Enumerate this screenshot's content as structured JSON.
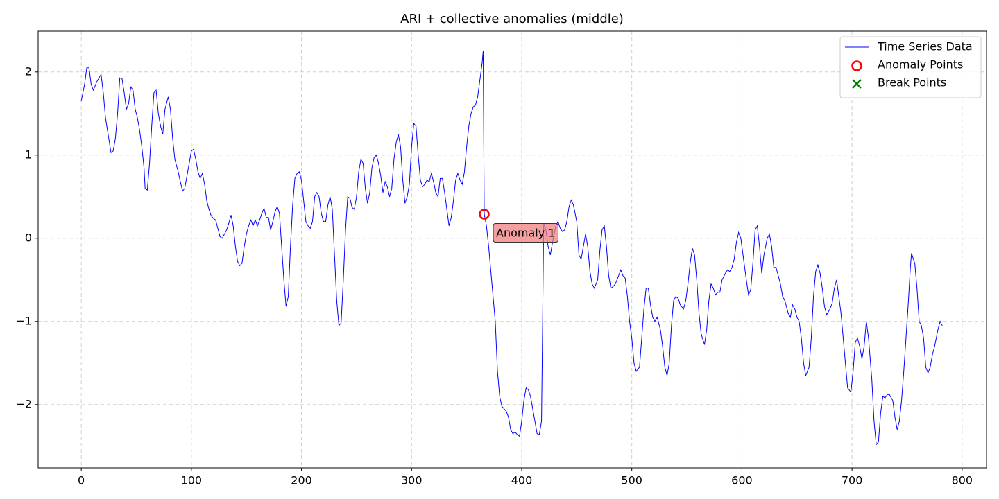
{
  "chart_data": {
    "type": "line",
    "title": "ARI + collective anomalies (middle)",
    "xlim": [
      -39.15,
      822.15
    ],
    "ylim": [
      -2.76,
      2.49
    ],
    "xticks": [
      0,
      100,
      200,
      300,
      400,
      500,
      600,
      700,
      800
    ],
    "yticks": [
      {
        "value": -2,
        "label": "−2"
      },
      {
        "value": -1,
        "label": "−1"
      },
      0,
      1,
      2
    ],
    "grid": true,
    "legend": "upper right",
    "series": [
      {
        "name": "Time Series Data",
        "color": "#0000ff",
        "marker": "line",
        "x": [
          0,
          3,
          5,
          7,
          9,
          11,
          14,
          18,
          20,
          22,
          25,
          27,
          29,
          31,
          33,
          35,
          37,
          39,
          41,
          43,
          45,
          47,
          49,
          51,
          53,
          55,
          57,
          58,
          60,
          62,
          64,
          66,
          68,
          70,
          72,
          74,
          76,
          79,
          81,
          83,
          85,
          88,
          90,
          92,
          94,
          96,
          98,
          100,
          102,
          104,
          106,
          108,
          110,
          112,
          114,
          116,
          118,
          120,
          122,
          124,
          126,
          128,
          130,
          132,
          134,
          136,
          138,
          140,
          142,
          144,
          146,
          148,
          150,
          152,
          154,
          156,
          158,
          160,
          162,
          164,
          166,
          168,
          170,
          172,
          174,
          176,
          178,
          180,
          182,
          184,
          186,
          188,
          190,
          192,
          194,
          196,
          198,
          200,
          202,
          204,
          206,
          208,
          210,
          212,
          214,
          216,
          218,
          220,
          222,
          224,
          226,
          228,
          230,
          232,
          234,
          236,
          238,
          240,
          242,
          244,
          246,
          248,
          250,
          252,
          254,
          256,
          258,
          260,
          262,
          264,
          266,
          268,
          270,
          272,
          274,
          276,
          278,
          280,
          282,
          284,
          286,
          288,
          290,
          292,
          294,
          296,
          298,
          300,
          302,
          304,
          306,
          308,
          310,
          312,
          314,
          316,
          318,
          320,
          322,
          324,
          326,
          328,
          330,
          332,
          334,
          336,
          338,
          340,
          342,
          344,
          346,
          348,
          350,
          352,
          354,
          356,
          358,
          360,
          362,
          364,
          365,
          366,
          368,
          370,
          372,
          374,
          376,
          378,
          380,
          382,
          384,
          386,
          388,
          390,
          392,
          394,
          396,
          398,
          400,
          402,
          404,
          406,
          408,
          410,
          412,
          414,
          416,
          418,
          420,
          422,
          424,
          426,
          428,
          431,
          433,
          435,
          437,
          439,
          441,
          443,
          445,
          447,
          450,
          452,
          454,
          456,
          458,
          460,
          462,
          464,
          466,
          469,
          471,
          473,
          475,
          477,
          479,
          481,
          483,
          485,
          488,
          490,
          492,
          494,
          496,
          498,
          500,
          502,
          504,
          507,
          509,
          511,
          513,
          515,
          517,
          519,
          521,
          523,
          526,
          528,
          530,
          532,
          534,
          536,
          538,
          540,
          542,
          544,
          547,
          549,
          551,
          553,
          555,
          557,
          559,
          561,
          563,
          566,
          568,
          570,
          572,
          574,
          576,
          578,
          580,
          582,
          585,
          587,
          589,
          591,
          593,
          595,
          597,
          599,
          601,
          604,
          606,
          608,
          610,
          612,
          614,
          616,
          618,
          620,
          623,
          625,
          627,
          629,
          631,
          633,
          635,
          637,
          639,
          642,
          644,
          646,
          648,
          650,
          652,
          654,
          656,
          658,
          661,
          663,
          665,
          667,
          669,
          671,
          673,
          675,
          677,
          680,
          682,
          684,
          686,
          688,
          690,
          692,
          694,
          696,
          699,
          701,
          703,
          705,
          707,
          709,
          711,
          713,
          715,
          718,
          720,
          722,
          724,
          726,
          728,
          730,
          732,
          734,
          737,
          739,
          741,
          743,
          745,
          747,
          749,
          751,
          753,
          754,
          757,
          759,
          761,
          763,
          765,
          767,
          769,
          771,
          773,
          775,
          778,
          780,
          782
        ],
        "values": [
          1.65,
          1.85,
          2.05,
          2.05,
          1.85,
          1.78,
          1.88,
          1.97,
          1.75,
          1.45,
          1.2,
          1.03,
          1.05,
          1.2,
          1.5,
          1.93,
          1.92,
          1.75,
          1.55,
          1.62,
          1.82,
          1.78,
          1.55,
          1.45,
          1.3,
          1.1,
          0.85,
          0.6,
          0.58,
          0.9,
          1.35,
          1.75,
          1.78,
          1.5,
          1.35,
          1.25,
          1.55,
          1.7,
          1.55,
          1.2,
          0.95,
          0.8,
          0.68,
          0.57,
          0.6,
          0.75,
          0.9,
          1.05,
          1.07,
          0.95,
          0.8,
          0.72,
          0.78,
          0.65,
          0.45,
          0.35,
          0.27,
          0.24,
          0.22,
          0.12,
          0.02,
          0.0,
          0.05,
          0.1,
          0.18,
          0.28,
          0.15,
          -0.1,
          -0.28,
          -0.33,
          -0.3,
          -0.1,
          0.05,
          0.15,
          0.22,
          0.15,
          0.22,
          0.15,
          0.22,
          0.3,
          0.36,
          0.25,
          0.25,
          0.1,
          0.2,
          0.32,
          0.38,
          0.3,
          -0.1,
          -0.5,
          -0.82,
          -0.7,
          -0.1,
          0.4,
          0.72,
          0.78,
          0.8,
          0.7,
          0.45,
          0.2,
          0.15,
          0.12,
          0.2,
          0.5,
          0.55,
          0.5,
          0.3,
          0.2,
          0.2,
          0.4,
          0.5,
          0.35,
          -0.2,
          -0.75,
          -1.05,
          -1.02,
          -0.5,
          0.1,
          0.5,
          0.48,
          0.37,
          0.35,
          0.5,
          0.8,
          0.95,
          0.9,
          0.6,
          0.42,
          0.55,
          0.85,
          0.97,
          1.0,
          0.9,
          0.75,
          0.55,
          0.68,
          0.62,
          0.5,
          0.6,
          0.95,
          1.15,
          1.25,
          1.1,
          0.7,
          0.42,
          0.5,
          0.65,
          1.1,
          1.38,
          1.35,
          1.0,
          0.7,
          0.62,
          0.65,
          0.7,
          0.68,
          0.78,
          0.68,
          0.55,
          0.5,
          0.72,
          0.72,
          0.55,
          0.35,
          0.15,
          0.25,
          0.45,
          0.7,
          0.78,
          0.7,
          0.65,
          0.8,
          1.1,
          1.35,
          1.5,
          1.58,
          1.6,
          1.7,
          1.9,
          2.1,
          2.25,
          0.29,
          0.15,
          -0.1,
          -0.4,
          -0.7,
          -1.0,
          -1.6,
          -1.9,
          -2.02,
          -2.05,
          -2.08,
          -2.15,
          -2.3,
          -2.35,
          -2.33,
          -2.36,
          -2.38,
          -2.2,
          -1.95,
          -1.8,
          -1.82,
          -1.9,
          -2.05,
          -2.2,
          -2.35,
          -2.36,
          -2.2,
          0.18,
          0.1,
          -0.1,
          -0.2,
          -0.05,
          0.15,
          0.2,
          0.12,
          0.08,
          0.1,
          0.2,
          0.38,
          0.46,
          0.4,
          0.2,
          -0.2,
          -0.25,
          -0.1,
          0.05,
          -0.1,
          -0.4,
          -0.55,
          -0.6,
          -0.5,
          -0.15,
          0.1,
          0.15,
          -0.1,
          -0.45,
          -0.6,
          -0.58,
          -0.55,
          -0.45,
          -0.38,
          -0.45,
          -0.48,
          -0.7,
          -1.0,
          -1.2,
          -1.5,
          -1.6,
          -1.55,
          -1.2,
          -0.85,
          -0.6,
          -0.6,
          -0.8,
          -0.95,
          -1.0,
          -0.95,
          -1.1,
          -1.3,
          -1.55,
          -1.65,
          -1.5,
          -1.05,
          -0.75,
          -0.7,
          -0.72,
          -0.8,
          -0.85,
          -0.75,
          -0.55,
          -0.3,
          -0.12,
          -0.2,
          -0.5,
          -0.9,
          -1.15,
          -1.28,
          -1.1,
          -0.75,
          -0.55,
          -0.6,
          -0.68,
          -0.65,
          -0.65,
          -0.5,
          -0.42,
          -0.38,
          -0.4,
          -0.35,
          -0.25,
          -0.05,
          0.07,
          0.0,
          -0.2,
          -0.5,
          -0.68,
          -0.62,
          -0.3,
          0.1,
          0.15,
          -0.1,
          -0.42,
          -0.2,
          0.0,
          0.05,
          -0.1,
          -0.35,
          -0.35,
          -0.45,
          -0.55,
          -0.7,
          -0.75,
          -0.9,
          -0.95,
          -0.8,
          -0.85,
          -0.95,
          -1.0,
          -1.2,
          -1.5,
          -1.65,
          -1.55,
          -1.2,
          -0.7,
          -0.4,
          -0.32,
          -0.42,
          -0.6,
          -0.82,
          -0.92,
          -0.85,
          -0.78,
          -0.6,
          -0.5,
          -0.7,
          -0.9,
          -1.2,
          -1.5,
          -1.8,
          -1.85,
          -1.6,
          -1.25,
          -1.2,
          -1.3,
          -1.45,
          -1.3,
          -1.0,
          -1.2,
          -1.7,
          -2.2,
          -2.48,
          -2.45,
          -2.1,
          -1.9,
          -1.92,
          -1.88,
          -1.88,
          -1.95,
          -2.15,
          -2.3,
          -2.2,
          -1.95,
          -1.6,
          -1.2,
          -0.8,
          -0.35,
          -0.18,
          -0.3,
          -0.6,
          -1.0,
          -1.05,
          -1.2,
          -1.55,
          -1.62,
          -1.55,
          -1.4,
          -1.3,
          -1.1,
          -1.0,
          -1.05
        ]
      },
      {
        "name": "Anomaly Points",
        "color": "#ff0000",
        "marker": "o",
        "x": [
          366
        ],
        "values": [
          0.29
        ]
      },
      {
        "name": "Break Points",
        "color": "#008000",
        "marker": "x",
        "x": [],
        "values": []
      }
    ],
    "annotations": [
      {
        "text": "Anomaly 1"
      }
    ]
  }
}
